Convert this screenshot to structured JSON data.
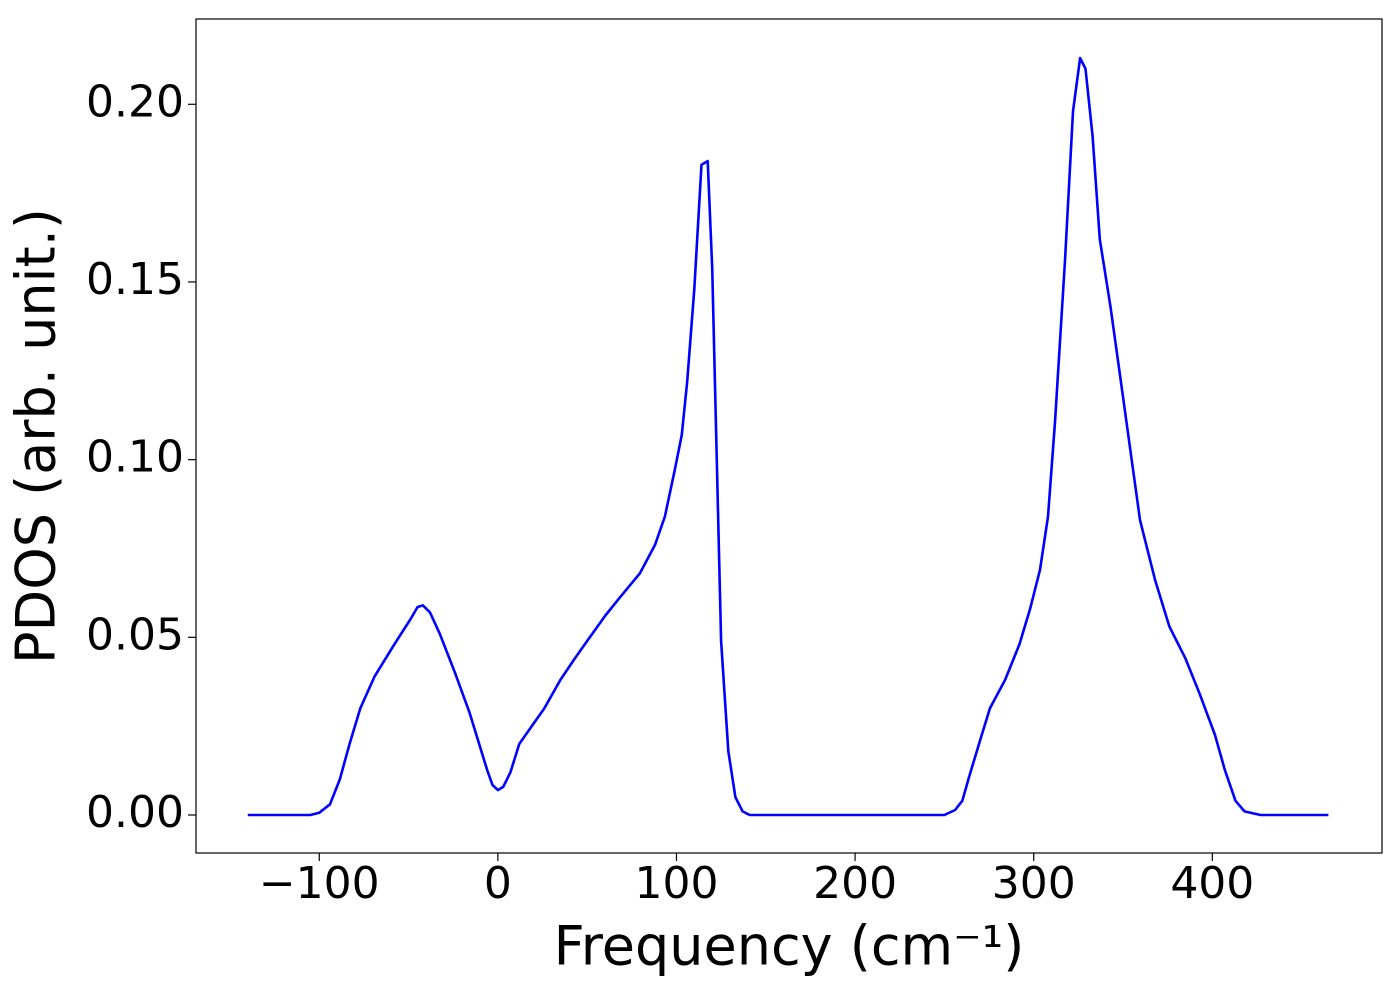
{
  "chart_data": {
    "type": "line",
    "xlabel": "Frequency (cm⁻¹)",
    "ylabel": "PDOS (arb. unit.)",
    "xlim": [
      -169,
      495
    ],
    "ylim": [
      -0.0107,
      0.224
    ],
    "xticks": [
      {
        "value": -100,
        "label": "−100"
      },
      0,
      100,
      200,
      300,
      400
    ],
    "yticks": [
      {
        "value": 0,
        "label": "0.00"
      },
      0.05,
      {
        "value": 0.1,
        "label": "0.10"
      },
      0.15,
      {
        "value": 0.2,
        "label": "0.20"
      }
    ],
    "series": [
      {
        "color": "#0000ff",
        "x": [
          -140,
          -105,
          -100,
          -94,
          -88.5,
          -83,
          -77,
          -69,
          -58,
          -49,
          -45,
          -42,
          -38,
          -32.5,
          -24,
          -16,
          -6,
          -3,
          0,
          3,
          7,
          12,
          19,
          26,
          35,
          43,
          51.5,
          60,
          68,
          79.5,
          88,
          93.5,
          99,
          103,
          106,
          110,
          114,
          117.5,
          120,
          125,
          129,
          133,
          137,
          141,
          250,
          256,
          260,
          264,
          270,
          275.5,
          284,
          292,
          298,
          303.5,
          308,
          312,
          317.5,
          322,
          326,
          329,
          333,
          337,
          343,
          348,
          354,
          359.5,
          368,
          376,
          385,
          393,
          401.5,
          407,
          413,
          418,
          427,
          465
        ],
        "values": [
          0,
          0,
          0.0006,
          0.003,
          0.01,
          0.02,
          0.03,
          0.039,
          0.048,
          0.055,
          0.0585,
          0.059,
          0.057,
          0.051,
          0.04,
          0.029,
          0.0127,
          0.0084,
          0.007,
          0.0079,
          0.012,
          0.02,
          0.025,
          0.03,
          0.038,
          0.044,
          0.05,
          0.056,
          0.061,
          0.068,
          0.076,
          0.084,
          0.097,
          0.107,
          0.122,
          0.148,
          0.183,
          0.184,
          0.154,
          0.049,
          0.018,
          0.005,
          0.001,
          0,
          0,
          0.0014,
          0.004,
          0.011,
          0.021,
          0.03,
          0.038,
          0.048,
          0.058,
          0.069,
          0.084,
          0.111,
          0.156,
          0.198,
          0.213,
          0.21,
          0.191,
          0.162,
          0.143,
          0.125,
          0.103,
          0.083,
          0.066,
          0.053,
          0.044,
          0.034,
          0.0225,
          0.0127,
          0.004,
          0.001,
          0,
          0
        ]
      }
    ]
  }
}
